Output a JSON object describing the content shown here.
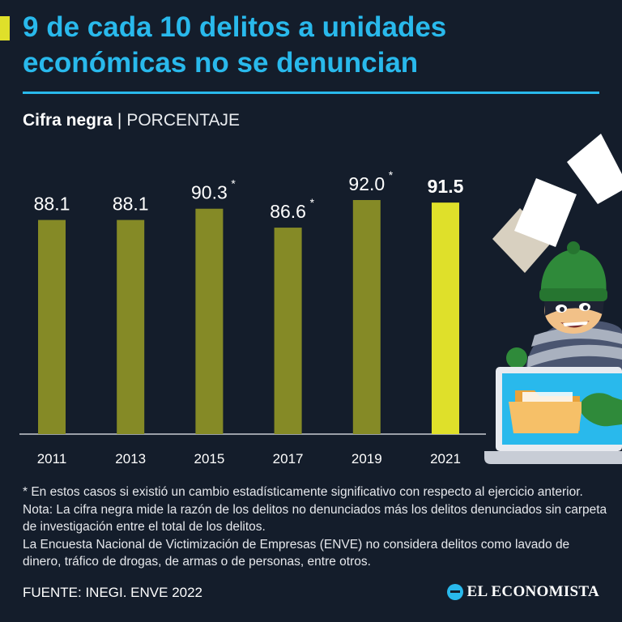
{
  "header": {
    "title_line1": "9 de cada 10 delitos a unidades",
    "title_line2": "económicas no se denuncian"
  },
  "subtitle": {
    "label": "Cifra negra",
    "separator": "|",
    "unit": "PORCENTAJE"
  },
  "chart_data": {
    "type": "bar",
    "categories": [
      "2011",
      "2013",
      "2015",
      "2017",
      "2019",
      "2021"
    ],
    "values": [
      88.1,
      88.1,
      90.3,
      86.6,
      92.0,
      91.5
    ],
    "labels": [
      "88.1",
      "88.1",
      "90.3",
      "86.6",
      "92.0",
      "91.5"
    ],
    "marks": [
      "",
      "",
      "*",
      "*",
      "*",
      ""
    ],
    "highlight_index": 5,
    "ylim": [
      0,
      100
    ],
    "title": "9 de cada 10 delitos a unidades económicas no se denuncian",
    "ylabel": "PORCENTAJE",
    "colors": {
      "bar": "#858a26",
      "highlight": "#dfe02a",
      "baseline": "#c8ccd2",
      "label": "#ffffff"
    }
  },
  "notes": {
    "asterisk": "* En estos casos si existió un cambio estadísticamente significativo con respecto al ejercicio anterior.",
    "definition": "Nota: La cifra negra mide la razón de los delitos no denunciados más los delitos denunciados sin carpeta de investigación entre el total de los delitos.",
    "enve": "La Encuesta Nacional de Victimización de Empresas (ENVE) no considera delitos como lavado de dinero, tráfico de drogas, de armas o de personas, entre otros."
  },
  "footer": {
    "source": "FUENTE: INEGI. ENVE 2022",
    "brand": "EL ECONOMISTA"
  },
  "colors": {
    "background": "#141d2b",
    "title": "#29b9ec",
    "accent": "#dfe02a"
  }
}
